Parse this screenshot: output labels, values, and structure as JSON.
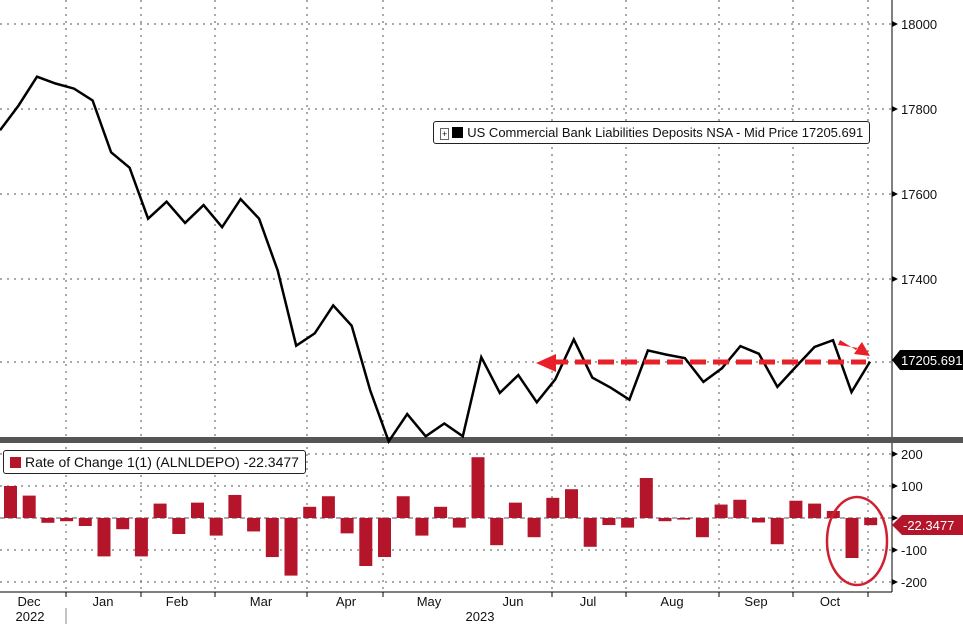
{
  "chart_data": [
    {
      "type": "line",
      "title": "",
      "series": [
        {
          "name": "US Commercial Bank Liabilities Deposits NSA - Mid Price",
          "last_value": "17205.691",
          "color": "#000000",
          "values": [
            17750,
            17808,
            17876,
            17860,
            17848,
            17820,
            17698,
            17662,
            17542,
            17582,
            17532,
            17574,
            17522,
            17588,
            17542,
            17420,
            17243,
            17272,
            17338,
            17290,
            17138,
            17018,
            17082,
            17030,
            17060,
            17030,
            17216,
            17132,
            17174,
            17110,
            17164,
            17258,
            17168,
            17144,
            17116,
            17232,
            17222,
            17214,
            17158,
            17190,
            17242,
            17224,
            17146,
            17194,
            17240,
            17256,
            17134,
            17205.691
          ]
        }
      ],
      "ylim": [
        16960,
        18060
      ],
      "yticks": [
        18000,
        17800,
        17600,
        17400
      ],
      "last_value_label": "17205.691",
      "annotation": "red dashed double arrow at ~17205 level from Jun to latest"
    },
    {
      "type": "bar",
      "series": [
        {
          "name": "Rate of Change 1(1) (ALNLDEPO)",
          "last_value": "-22.3477",
          "color": "#b5152b",
          "values": [
            100,
            70,
            -15,
            -10,
            -25,
            -120,
            -35,
            -120,
            45,
            -50,
            48,
            -55,
            72,
            -42,
            -122,
            -180,
            35,
            68,
            -48,
            -150,
            -122,
            68,
            -55,
            35,
            -30,
            190,
            -85,
            48,
            -60,
            63,
            90,
            -90,
            -22,
            -30,
            125,
            -10,
            -5,
            -60,
            42,
            57,
            -14,
            -82,
            54,
            45,
            22,
            -125,
            -22.3477
          ]
        }
      ],
      "ylim": [
        -220,
        220
      ],
      "yticks": [
        200,
        100,
        0,
        -100,
        -200
      ],
      "ytick_labels": [
        "200",
        "100",
        "",
        "-100",
        "-200"
      ],
      "last_value_label": "-22.3477"
    }
  ],
  "xaxis": {
    "months": [
      "Dec",
      "Jan",
      "Feb",
      "Mar",
      "Apr",
      "May",
      "Jun",
      "Jul",
      "Aug",
      "Sep",
      "Oct"
    ],
    "years": [
      "2022",
      "2023"
    ]
  },
  "legend_top": {
    "label": "US Commercial Bank Liabilities Deposits NSA - Mid Price 17205.691"
  },
  "legend_bottom": {
    "label": "Rate of Change 1(1) (ALNLDEPO) -22.3477"
  }
}
